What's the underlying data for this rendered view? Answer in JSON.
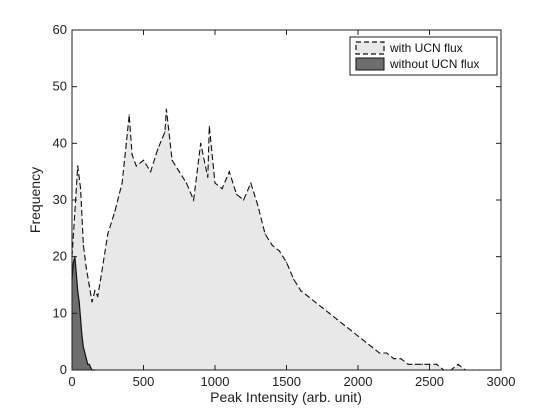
{
  "chart_data": {
    "type": "area",
    "xlabel": "Peak Intensity (arb. unit)",
    "ylabel": "Frequency",
    "xlim": [
      0,
      3000
    ],
    "ylim": [
      0,
      60
    ],
    "xticks": [
      0,
      500,
      1000,
      1500,
      2000,
      2500,
      3000
    ],
    "yticks": [
      0,
      10,
      20,
      30,
      40,
      50,
      60
    ],
    "grid": false,
    "legend_position": "top-right",
    "series": [
      {
        "name": "with UCN flux",
        "style": "dashed outline, light gray fill",
        "fill_color": "#e8e8e8",
        "line_color": "#111111",
        "x": [
          0,
          20,
          40,
          60,
          80,
          100,
          120,
          140,
          160,
          180,
          200,
          250,
          300,
          350,
          380,
          400,
          420,
          450,
          500,
          550,
          600,
          650,
          660,
          700,
          750,
          800,
          850,
          900,
          950,
          960,
          1000,
          1050,
          1100,
          1150,
          1200,
          1250,
          1300,
          1350,
          1400,
          1450,
          1500,
          1550,
          1600,
          1650,
          1700,
          1750,
          1800,
          1850,
          1900,
          1950,
          2000,
          2050,
          2100,
          2150,
          2200,
          2250,
          2300,
          2350,
          2400,
          2450,
          2500,
          2550,
          2600,
          2650,
          2700,
          2750,
          2800,
          2850,
          2900,
          2950
        ],
        "values": [
          20,
          28,
          36,
          32,
          22,
          18,
          15,
          12,
          14,
          13,
          16,
          24,
          28,
          33,
          40,
          45,
          38,
          36,
          37,
          35,
          39,
          42,
          46,
          37,
          35,
          33,
          30,
          40,
          34,
          43,
          33,
          32,
          35,
          31,
          30,
          33,
          29,
          24,
          22,
          21,
          19,
          16,
          14,
          13,
          12,
          11,
          10,
          9,
          8,
          7,
          6,
          5,
          4,
          3,
          3,
          2,
          2,
          1,
          1,
          1,
          1,
          1,
          0,
          0,
          1,
          0,
          0,
          0,
          0,
          0
        ]
      },
      {
        "name": "without UCN flux",
        "style": "solid outline, dark gray fill",
        "fill_color": "#6e6e6e",
        "line_color": "#111111",
        "x": [
          0,
          10,
          20,
          30,
          40,
          50,
          60,
          70,
          80,
          90,
          100,
          110,
          120,
          140,
          160
        ],
        "values": [
          16,
          19,
          20,
          17,
          14,
          12,
          9,
          6,
          4,
          3,
          2,
          1,
          1,
          0,
          0
        ]
      }
    ]
  }
}
